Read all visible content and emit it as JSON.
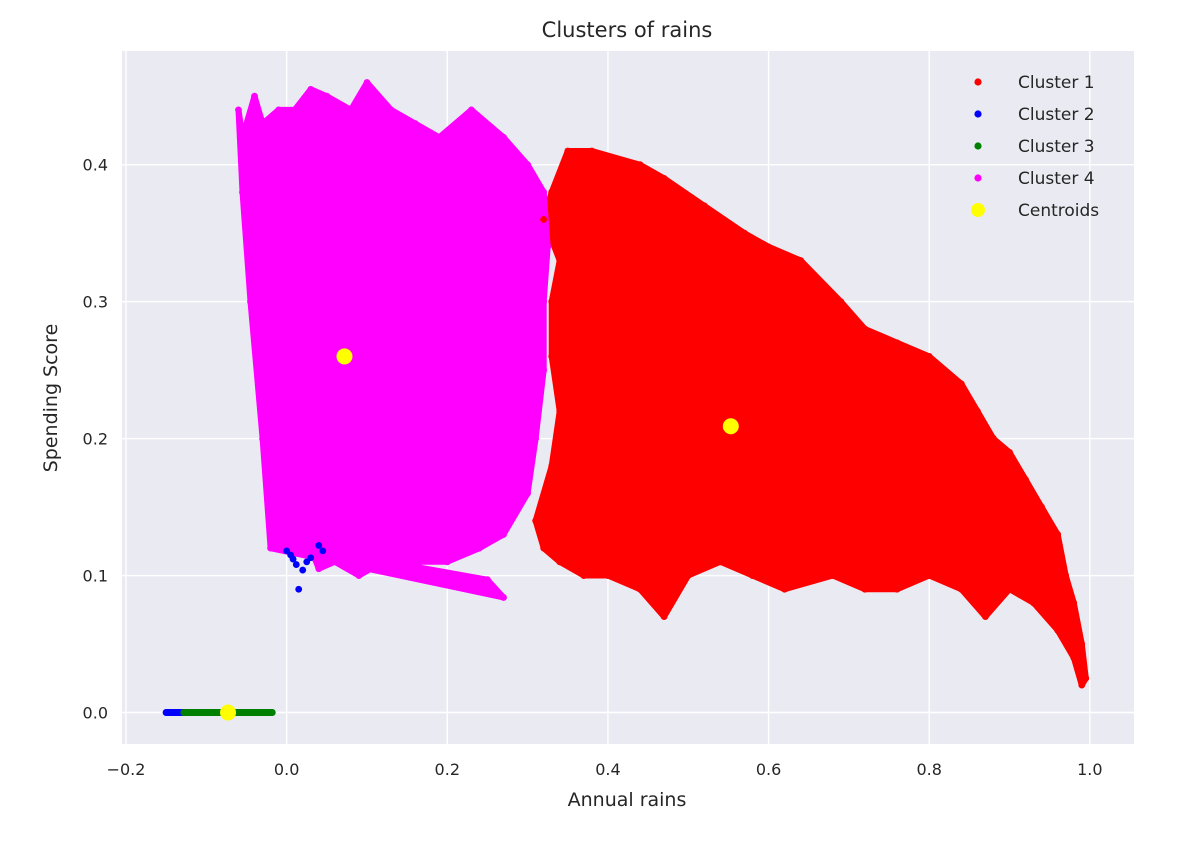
{
  "chart_data": {
    "type": "scatter",
    "title": "Clusters of rains",
    "xlabel": "Annual rains",
    "ylabel": "Spending Score",
    "xlim": [
      -0.205,
      1.055
    ],
    "ylim": [
      -0.023,
      0.483
    ],
    "xticks": [
      -0.2,
      0.0,
      0.2,
      0.4,
      0.6,
      0.8,
      1.0
    ],
    "xtick_labels": [
      "−0.2",
      "0.0",
      "0.2",
      "0.4",
      "0.6",
      "0.8",
      "1.0"
    ],
    "yticks": [
      0.0,
      0.1,
      0.2,
      0.3,
      0.4
    ],
    "ytick_labels": [
      "0.0",
      "0.1",
      "0.2",
      "0.3",
      "0.4"
    ],
    "grid": true,
    "background": "#EAEAF2",
    "legend_position": "top-right",
    "series": [
      {
        "name": "Cluster 1",
        "color": "#FF0000",
        "points": [
          [
            0.32,
            0.36
          ],
          [
            0.33,
            0.38
          ],
          [
            0.35,
            0.41
          ],
          [
            0.38,
            0.41
          ],
          [
            0.44,
            0.4
          ],
          [
            0.47,
            0.39
          ],
          [
            0.52,
            0.37
          ],
          [
            0.57,
            0.35
          ],
          [
            0.6,
            0.34
          ],
          [
            0.64,
            0.33
          ],
          [
            0.69,
            0.3
          ],
          [
            0.72,
            0.28
          ],
          [
            0.76,
            0.27
          ],
          [
            0.8,
            0.26
          ],
          [
            0.84,
            0.24
          ],
          [
            0.86,
            0.22
          ],
          [
            0.88,
            0.2
          ],
          [
            0.9,
            0.19
          ],
          [
            0.92,
            0.17
          ],
          [
            0.94,
            0.15
          ],
          [
            0.96,
            0.13
          ],
          [
            0.97,
            0.1
          ],
          [
            0.98,
            0.08
          ],
          [
            0.99,
            0.05
          ],
          [
            0.995,
            0.025
          ],
          [
            0.99,
            0.02
          ],
          [
            0.98,
            0.04
          ],
          [
            0.96,
            0.06
          ],
          [
            0.93,
            0.08
          ],
          [
            0.9,
            0.09
          ],
          [
            0.87,
            0.07
          ],
          [
            0.84,
            0.09
          ],
          [
            0.8,
            0.1
          ],
          [
            0.76,
            0.09
          ],
          [
            0.72,
            0.09
          ],
          [
            0.68,
            0.1
          ],
          [
            0.62,
            0.09
          ],
          [
            0.58,
            0.1
          ],
          [
            0.54,
            0.11
          ],
          [
            0.5,
            0.1
          ],
          [
            0.47,
            0.07
          ],
          [
            0.44,
            0.09
          ],
          [
            0.4,
            0.1
          ],
          [
            0.37,
            0.1
          ],
          [
            0.34,
            0.11
          ],
          [
            0.32,
            0.12
          ],
          [
            0.31,
            0.14
          ],
          [
            0.33,
            0.18
          ],
          [
            0.34,
            0.22
          ],
          [
            0.33,
            0.26
          ],
          [
            0.33,
            0.3
          ],
          [
            0.34,
            0.33
          ]
        ]
      },
      {
        "name": "Cluster 2",
        "color": "#0000FF",
        "points": [
          [
            0.0,
            0.118
          ],
          [
            0.005,
            0.115
          ],
          [
            0.012,
            0.108
          ],
          [
            0.015,
            0.09
          ],
          [
            0.02,
            0.104
          ],
          [
            0.03,
            0.113
          ],
          [
            0.04,
            0.122
          ],
          [
            0.045,
            0.118
          ],
          [
            0.008,
            0.112
          ],
          [
            0.025,
            0.11
          ],
          [
            -0.15,
            0.0
          ],
          [
            -0.145,
            0.0
          ],
          [
            -0.14,
            0.0
          ],
          [
            -0.135,
            0.0
          ],
          [
            -0.13,
            0.0
          ]
        ]
      },
      {
        "name": "Cluster 3",
        "color": "#008000",
        "points": [
          [
            -0.128,
            0.0
          ],
          [
            -0.115,
            0.0
          ],
          [
            -0.1,
            0.0
          ],
          [
            -0.085,
            0.0
          ],
          [
            -0.07,
            0.0
          ],
          [
            -0.055,
            0.0
          ],
          [
            -0.04,
            0.0
          ],
          [
            -0.025,
            0.0
          ],
          [
            -0.018,
            0.0
          ]
        ]
      },
      {
        "name": "Cluster 4",
        "color": "#FF00FF",
        "points": [
          [
            -0.06,
            0.44
          ],
          [
            -0.055,
            0.42
          ],
          [
            -0.04,
            0.45
          ],
          [
            -0.03,
            0.43
          ],
          [
            -0.01,
            0.44
          ],
          [
            0.01,
            0.44
          ],
          [
            0.03,
            0.455
          ],
          [
            0.05,
            0.45
          ],
          [
            0.08,
            0.44
          ],
          [
            0.1,
            0.46
          ],
          [
            0.13,
            0.44
          ],
          [
            0.16,
            0.43
          ],
          [
            0.19,
            0.42
          ],
          [
            0.23,
            0.44
          ],
          [
            0.27,
            0.42
          ],
          [
            0.3,
            0.4
          ],
          [
            0.32,
            0.38
          ],
          [
            0.325,
            0.34
          ],
          [
            0.32,
            0.3
          ],
          [
            0.32,
            0.25
          ],
          [
            0.31,
            0.2
          ],
          [
            0.3,
            0.16
          ],
          [
            0.27,
            0.13
          ],
          [
            0.24,
            0.12
          ],
          [
            0.2,
            0.11
          ],
          [
            0.16,
            0.11
          ],
          [
            0.12,
            0.11
          ],
          [
            0.09,
            0.1
          ],
          [
            0.06,
            0.11
          ],
          [
            0.04,
            0.105
          ],
          [
            0.03,
            0.12
          ],
          [
            0.25,
            0.097
          ],
          [
            0.27,
            0.084
          ],
          [
            -0.02,
            0.12
          ],
          [
            -0.03,
            0.2
          ],
          [
            -0.045,
            0.3
          ],
          [
            -0.055,
            0.38
          ]
        ]
      }
    ],
    "centroids": {
      "name": "Centroids",
      "color": "#FFFF00",
      "points": [
        [
          0.072,
          0.26
        ],
        [
          0.553,
          0.209
        ],
        [
          -0.073,
          0.0
        ]
      ]
    }
  }
}
